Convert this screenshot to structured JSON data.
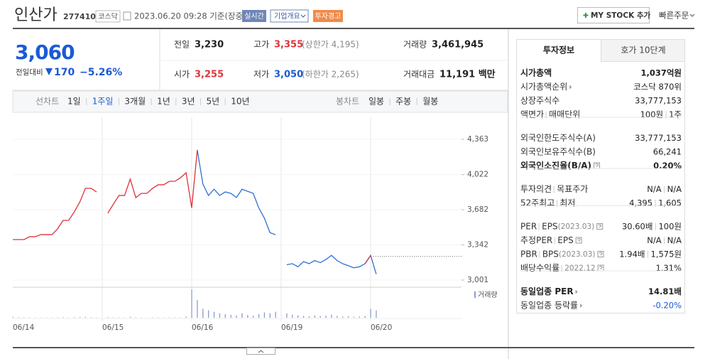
{
  "header": {
    "name": "인산가",
    "code": "277410",
    "market": "코스닥",
    "timestamp": "2023.06.20 09:28 기준(장중)",
    "buttons": [
      "실시간",
      "기업개요",
      "투자경고"
    ],
    "mystock": "MY STOCK 추가",
    "quick_order": "빠른주문"
  },
  "quote": {
    "price": "3,060",
    "change_label": "전일대비",
    "change": "170",
    "change_rate": "−5.26%"
  },
  "summary": {
    "prev_label": "전일",
    "prev": "3,230",
    "high_label": "고가",
    "high": "3,355",
    "upper_limit": "(상한가 4,195)",
    "volume_label": "거래량",
    "volume": "3,461,945",
    "open_label": "시가",
    "open": "3,255",
    "low_label": "저가",
    "low": "3,050",
    "lower_limit": "(하한가 2,265)",
    "amount_label": "거래대금",
    "amount": "11,191 백만"
  },
  "chart_tabs": {
    "line_label": "선차트",
    "line_periods": [
      "1일",
      "1주일",
      "3개월",
      "1년",
      "3년",
      "5년",
      "10년"
    ],
    "line_active": 1,
    "candle_label": "봉차트",
    "candle_periods": [
      "일봉",
      "주봉",
      "월봉"
    ]
  },
  "chart_data": {
    "type": "line",
    "categories": [
      "06/14",
      null,
      null,
      null,
      null,
      null,
      null,
      null,
      null,
      null,
      null,
      null,
      null,
      null,
      null,
      null,
      "06/15",
      null,
      null,
      null,
      null,
      null,
      null,
      null,
      null,
      null,
      null,
      null,
      null,
      null,
      null,
      null,
      "06/16",
      null,
      null,
      null,
      null,
      null,
      null,
      null,
      null,
      null,
      null,
      null,
      null,
      null,
      null,
      null,
      "06/19",
      null,
      null,
      null,
      null,
      null,
      null,
      null,
      null,
      null,
      null,
      null,
      null,
      null,
      null,
      null,
      "06/20",
      null
    ],
    "series": [
      {
        "color": "#2f6fd6",
        "values": [
          null,
          null,
          null,
          null,
          null,
          null,
          null,
          null,
          null,
          null,
          null,
          null,
          null,
          null,
          null,
          null,
          null,
          null,
          null,
          null,
          null,
          null,
          null,
          null,
          null,
          null,
          null,
          null,
          null,
          null,
          null,
          null,
          null,
          4260,
          3930,
          3820,
          3880,
          3820,
          3854,
          3840,
          3800,
          3880,
          3860,
          3840,
          3700,
          3600,
          3460,
          3440,
          null,
          3150,
          3160,
          3130,
          3180,
          3160,
          3190,
          3170,
          3200,
          3240,
          3190,
          3160,
          3140,
          3120,
          3130,
          3160,
          3240,
          3060
        ]
      },
      {
        "color": "#e0323a",
        "values": [
          3393,
          3393,
          3393,
          3421,
          3421,
          3441,
          3441,
          3441,
          3496,
          3579,
          3579,
          3661,
          3758,
          3889,
          3889,
          3854,
          null,
          3648,
          3737,
          3820,
          3820,
          3978,
          3799,
          3840,
          3840,
          3889,
          3923,
          3923,
          3957,
          3957,
          3992,
          4040,
          3700,
          4260,
          null,
          null,
          null,
          null,
          null,
          null,
          null,
          null,
          null,
          null,
          null,
          null,
          null,
          null,
          null,
          null,
          null,
          null,
          null,
          null,
          null,
          null,
          null,
          null,
          null,
          null,
          null,
          null,
          null,
          3160,
          3240,
          null
        ]
      }
    ],
    "reference_line": 3230,
    "ylim": [
      3001,
      4363
    ],
    "yticks": [
      {
        "value": 4363,
        "label": "4,363"
      },
      {
        "value": 4022,
        "label": "4,022"
      },
      {
        "value": 3682,
        "label": "3,682"
      },
      {
        "value": 3342,
        "label": "3,342"
      },
      {
        "value": 3001,
        "label": "3,001"
      }
    ],
    "grid": true,
    "volume": {
      "label": "거래량",
      "color": "#8a9ccc",
      "ylim": [
        0,
        1000000
      ],
      "values": [
        30000,
        20000,
        15000,
        10000,
        12000,
        8000,
        10000,
        9000,
        15000,
        20000,
        12000,
        18000,
        25000,
        30000,
        15000,
        10000,
        null,
        20000,
        15000,
        12000,
        10000,
        30000,
        15000,
        10000,
        8000,
        12000,
        10000,
        9000,
        12000,
        10000,
        15000,
        40000,
        950000,
        600000,
        300000,
        250000,
        200000,
        150000,
        120000,
        100000,
        80000,
        150000,
        90000,
        70000,
        120000,
        180000,
        150000,
        200000,
        null,
        150000,
        100000,
        80000,
        60000,
        50000,
        80000,
        60000,
        70000,
        100000,
        60000,
        40000,
        50000,
        30000,
        40000,
        60000,
        300000,
        250000
      ]
    }
  },
  "invest_panel": {
    "tabs": [
      "투자정보",
      "호가 10단계"
    ],
    "groups": [
      [
        {
          "labels": [
            "시가총액"
          ],
          "values": [
            "1,037억원"
          ],
          "bold": true
        },
        {
          "labels": [
            "시가총액순위"
          ],
          "arrow": true,
          "values": [
            "코스닥 870위"
          ]
        },
        {
          "labels": [
            "상장주식수"
          ],
          "values": [
            "33,777,153"
          ]
        },
        {
          "labels": [
            "액면가",
            "매매단위"
          ],
          "values": [
            "100원",
            "1주"
          ]
        }
      ],
      [
        {
          "labels": [
            "외국인한도주식수(A)"
          ],
          "values": [
            "33,777,153"
          ]
        },
        {
          "labels": [
            "외국인보유주식수(B)"
          ],
          "values": [
            "66,241"
          ]
        },
        {
          "labels": [
            "외국인소진율(B/A)"
          ],
          "help": true,
          "values": [
            "0.20%"
          ],
          "bold": true
        }
      ],
      [
        {
          "labels": [
            "투자의견",
            "목표주가"
          ],
          "values": [
            "N/A",
            "N/A"
          ]
        },
        {
          "labels": [
            "52주최고",
            "최저"
          ],
          "values": [
            "4,395",
            "1,605"
          ]
        }
      ],
      [
        {
          "labels": [
            "PER",
            "EPS"
          ],
          "note": "(2023.03)",
          "help": true,
          "values": [
            "30.60배",
            "100원"
          ]
        },
        {
          "labels": [
            "추정PER",
            "EPS"
          ],
          "help": true,
          "values": [
            "N/A",
            "N/A"
          ]
        },
        {
          "labels": [
            "PBR",
            "BPS"
          ],
          "note": " (2023.03)",
          "help": true,
          "values": [
            "1.94배",
            "1,575원"
          ]
        },
        {
          "labels": [
            "배당수익률"
          ],
          "note": "2022.12",
          "note_sep": true,
          "help": true,
          "values": [
            "1.31%"
          ]
        }
      ],
      [
        {
          "labels": [
            "동일업종 PER"
          ],
          "arrow": true,
          "values": [
            "14.81배"
          ],
          "bold": true
        },
        {
          "labels": [
            "동일업종 등락률"
          ],
          "arrow": true,
          "values": [
            "-0.20%"
          ],
          "value_color": "#1a5ad6"
        }
      ]
    ]
  }
}
